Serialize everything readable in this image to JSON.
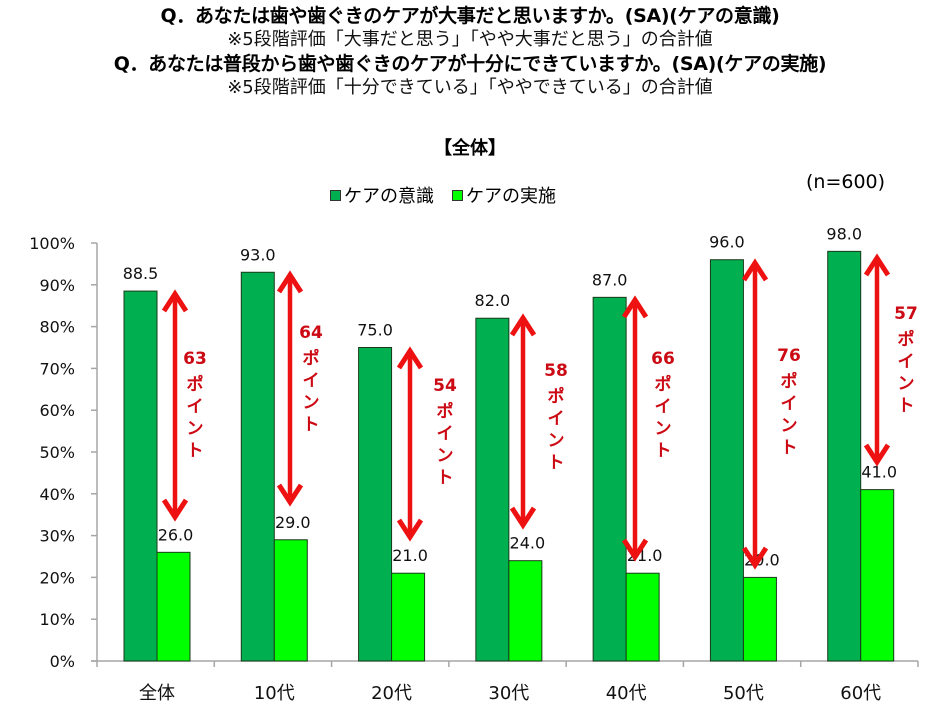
{
  "header": {
    "question1": "Q．あなたは歯や歯ぐきのケアが大事だと思いますか。(SA)(ケアの意識)",
    "note1": "※5段階評価「大事だと思う」「やや大事だと思う」の合計値",
    "question2": "Q．あなたは普段から歯や歯ぐきのケアが十分にできていますか。(SA)(ケアの実施)",
    "note2": "※5段階評価「十分できている」「ややできている」の合計値"
  },
  "chart_title": "【全体】",
  "sample_size": "(n=600)",
  "legend": [
    {
      "label": "ケアの意識",
      "color": "#00b050"
    },
    {
      "label": "ケアの実施",
      "color": "#00ff00"
    }
  ],
  "colors": {
    "awareness": "#00b050",
    "practice": "#00ff00",
    "arrow": "#ee1111",
    "gap_text": "#cc0a14",
    "axis": "#a6a6a6"
  },
  "y_axis_ticks": [
    "0%",
    "10%",
    "20%",
    "30%",
    "40%",
    "50%",
    "60%",
    "70%",
    "80%",
    "90%",
    "100%"
  ],
  "gap_unit": "ポイント",
  "chart_data": {
    "type": "bar",
    "title": "【全体】",
    "xlabel": "",
    "ylabel": "",
    "ylim": [
      0,
      100
    ],
    "y_format": "percent",
    "grid": false,
    "legend_position": "top",
    "categories": [
      "全体",
      "10代",
      "20代",
      "30代",
      "40代",
      "50代",
      "60代"
    ],
    "series": [
      {
        "name": "ケアの意識",
        "values": [
          88.5,
          93.0,
          75.0,
          82.0,
          87.0,
          96.0,
          98.0
        ]
      },
      {
        "name": "ケアの実施",
        "values": [
          26.0,
          29.0,
          21.0,
          24.0,
          21.0,
          20.0,
          41.0
        ]
      }
    ],
    "value_labels": {
      "ケアの意識": [
        "88.5",
        "93.0",
        "75.0",
        "82.0",
        "87.0",
        "96.0",
        "98.0"
      ],
      "ケアの実施": [
        "26.0",
        "29.0",
        "21.0",
        "24.0",
        "21.0",
        "20.0",
        "41.0"
      ]
    },
    "annotations": [
      {
        "category": "全体",
        "gap": "63",
        "unit": "ポイント"
      },
      {
        "category": "10代",
        "gap": "64",
        "unit": "ポイント"
      },
      {
        "category": "20代",
        "gap": "54",
        "unit": "ポイント"
      },
      {
        "category": "30代",
        "gap": "58",
        "unit": "ポイント"
      },
      {
        "category": "40代",
        "gap": "66",
        "unit": "ポイント"
      },
      {
        "category": "50代",
        "gap": "76",
        "unit": "ポイント"
      },
      {
        "category": "60代",
        "gap": "57",
        "unit": "ポイント"
      }
    ],
    "sample_size": "(n=600)"
  }
}
